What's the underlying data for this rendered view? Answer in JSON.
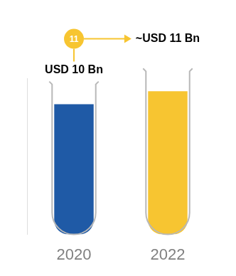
{
  "chart_data": {
    "type": "bar",
    "categories": [
      "2020",
      "2022"
    ],
    "values": [
      10,
      11
    ],
    "value_labels": [
      "USD 10 Bn",
      "~USD 11 Bn"
    ],
    "colors": [
      "#1f5aa6",
      "#f7c531"
    ],
    "ylim": [
      0,
      12
    ],
    "tick_labels": "x",
    "data_labels": true,
    "grid": false,
    "annotations": [
      "11"
    ]
  }
}
